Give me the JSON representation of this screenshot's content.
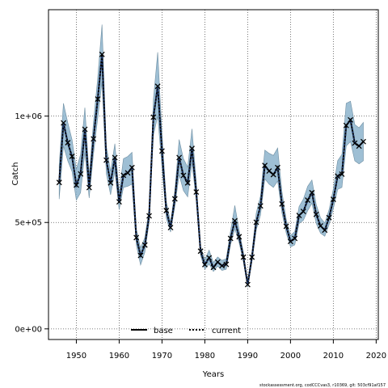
{
  "chart_data": {
    "type": "line",
    "title": "",
    "xlabel": "Years",
    "ylabel": "Catch",
    "xlim": [
      1943.5,
      2020.5
    ],
    "ylim": [
      -50000,
      1500000
    ],
    "x_ticks": [
      1950,
      1960,
      1970,
      1980,
      1990,
      2000,
      2010,
      2020
    ],
    "x_tick_labels": [
      "1950",
      "1960",
      "1970",
      "1980",
      "1990",
      "2000",
      "2010",
      "2020"
    ],
    "y_ticks": [
      0,
      500000,
      1000000
    ],
    "y_tick_labels": [
      "0e+00",
      "5e+05",
      "1e+06"
    ],
    "grid": "on",
    "legend_position": "bottom",
    "footer": "stockassessment.org, codCCCvas3, r10369, git: 503cf91af157",
    "band_color": "#8db4cc",
    "series": [
      {
        "name": "base",
        "style": "solid",
        "color": "#000000",
        "x": [
          1946,
          1947,
          1948,
          1949,
          1950,
          1951,
          1952,
          1953,
          1954,
          1955,
          1956,
          1957,
          1958,
          1959,
          1960,
          1961,
          1962,
          1963,
          1964,
          1965,
          1966,
          1967,
          1968,
          1969,
          1970,
          1971,
          1972,
          1973,
          1974,
          1975,
          1976,
          1977,
          1978,
          1979,
          1980,
          1981,
          1982,
          1983,
          1984,
          1985,
          1986,
          1987,
          1988,
          1989,
          1990,
          1991,
          1992,
          1993,
          1994,
          1995,
          1996,
          1997,
          1998,
          1999,
          2000,
          2001,
          2002,
          2003,
          2004,
          2005,
          2006,
          2007,
          2008,
          2009,
          2010,
          2011,
          2012,
          2013,
          2014,
          2015,
          2016,
          2017
        ],
        "y": [
          688000,
          968000,
          875000,
          811000,
          676000,
          728000,
          938000,
          664000,
          893000,
          1080000,
          1290000,
          793000,
          686000,
          805000,
          597000,
          722000,
          733000,
          758000,
          429000,
          345000,
          394000,
          531000,
          995000,
          1140000,
          836000,
          556000,
          476000,
          611000,
          805000,
          721000,
          686000,
          848000,
          643000,
          365000,
          302000,
          334000,
          289000,
          314000,
          297000,
          303000,
          425000,
          508000,
          433000,
          337000,
          208000,
          337000,
          501000,
          578000,
          768000,
          742000,
          725000,
          758000,
          587000,
          482000,
          411000,
          425000,
          533000,
          552000,
          605000,
          640000,
          538000,
          484000,
          464000,
          523000,
          609000,
          718000,
          727000,
          956000,
          982000,
          873000,
          859000,
          880000
        ]
      },
      {
        "name": "current",
        "style": "dotted",
        "color": "#000000",
        "x": [
          1946,
          1947,
          1948,
          1949,
          1950,
          1951,
          1952,
          1953,
          1954,
          1955,
          1956,
          1957,
          1958,
          1959,
          1960,
          1961,
          1962,
          1963,
          1964,
          1965,
          1966,
          1967,
          1968,
          1969,
          1970,
          1971,
          1972,
          1973,
          1974,
          1975,
          1976,
          1977,
          1978,
          1979,
          1980,
          1981,
          1982,
          1983,
          1984,
          1985,
          1986,
          1987,
          1988,
          1989,
          1990,
          1991,
          1992,
          1993,
          1994,
          1995,
          1996,
          1997,
          1998,
          1999,
          2000,
          2001,
          2002,
          2003,
          2004,
          2005,
          2006,
          2007,
          2008,
          2009,
          2010,
          2011,
          2012,
          2013,
          2014,
          2015,
          2016,
          2017
        ],
        "y": [
          688000,
          968000,
          875000,
          811000,
          676000,
          728000,
          938000,
          664000,
          893000,
          1080000,
          1290000,
          793000,
          686000,
          805000,
          597000,
          722000,
          733000,
          758000,
          429000,
          345000,
          394000,
          531000,
          995000,
          1140000,
          836000,
          556000,
          476000,
          611000,
          805000,
          721000,
          686000,
          848000,
          643000,
          365000,
          302000,
          334000,
          289000,
          314000,
          297000,
          303000,
          425000,
          508000,
          433000,
          337000,
          208000,
          337000,
          501000,
          578000,
          768000,
          742000,
          725000,
          758000,
          587000,
          482000,
          411000,
          425000,
          533000,
          552000,
          605000,
          640000,
          538000,
          484000,
          464000,
          523000,
          609000,
          718000,
          727000,
          956000,
          982000,
          873000,
          859000,
          880000
        ]
      }
    ],
    "band": {
      "lower": [
        610000,
        860000,
        790000,
        740000,
        605000,
        640000,
        830000,
        615000,
        820000,
        990000,
        1160000,
        730000,
        630000,
        740000,
        560000,
        665000,
        670000,
        680000,
        395000,
        300000,
        360000,
        500000,
        910000,
        1000000,
        760000,
        520000,
        455000,
        575000,
        725000,
        650000,
        620000,
        780000,
        600000,
        345000,
        280000,
        305000,
        270000,
        295000,
        275000,
        280000,
        395000,
        470000,
        405000,
        315000,
        195000,
        315000,
        465000,
        535000,
        705000,
        680000,
        665000,
        695000,
        545000,
        450000,
        385000,
        395000,
        495000,
        510000,
        555000,
        590000,
        495000,
        450000,
        435000,
        490000,
        565000,
        655000,
        665000,
        860000,
        880000,
        790000,
        775000,
        790000
      ],
      "upper": [
        770000,
        1060000,
        970000,
        890000,
        750000,
        820000,
        1040000,
        720000,
        970000,
        1180000,
        1430000,
        860000,
        740000,
        870000,
        640000,
        800000,
        810000,
        830000,
        470000,
        380000,
        430000,
        565000,
        1080000,
        1300000,
        920000,
        600000,
        500000,
        650000,
        890000,
        800000,
        760000,
        940000,
        690000,
        388000,
        326000,
        370000,
        312000,
        338000,
        322000,
        330000,
        460000,
        580000,
        465000,
        360000,
        224000,
        362000,
        545000,
        625000,
        840000,
        825000,
        815000,
        850000,
        645000,
        515000,
        438000,
        458000,
        575000,
        610000,
        670000,
        700000,
        585000,
        522000,
        498000,
        560000,
        658000,
        790000,
        820000,
        1060000,
        1070000,
        960000,
        945000,
        970000
      ]
    }
  }
}
